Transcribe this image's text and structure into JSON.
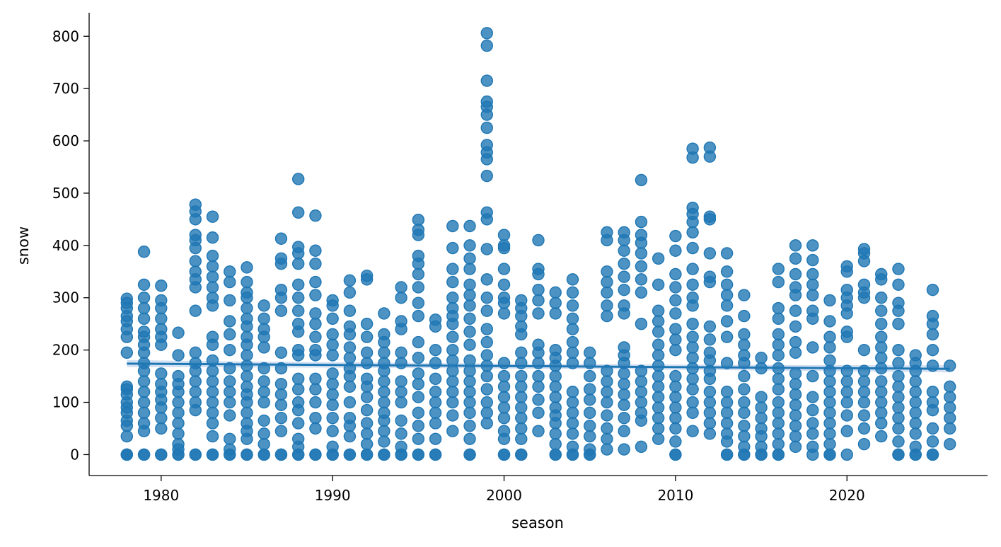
{
  "chart_data": {
    "type": "scatter",
    "title": "",
    "xlabel": "season",
    "ylabel": "snow",
    "xlim": [
      1975.8,
      2028.2
    ],
    "ylim": [
      -40,
      845
    ],
    "xticks": [
      1980,
      1990,
      2000,
      2010,
      2020
    ],
    "yticks": [
      0,
      100,
      200,
      300,
      400,
      500,
      600,
      700,
      800
    ],
    "grid": false,
    "legend": "none",
    "colors": {
      "points": "#1f77b4",
      "line": "#1f77b4",
      "band": "#aec7e8"
    },
    "regression": {
      "x": [
        1978,
        2026
      ],
      "y": [
        174,
        164
      ]
    },
    "points": [
      {
        "x": 1978,
        "y": [
          0,
          0,
          0,
          35,
          55,
          65,
          80,
          90,
          100,
          115,
          125,
          130,
          195,
          225,
          240,
          255,
          265,
          280,
          290,
          298
        ]
      },
      {
        "x": 1979,
        "y": [
          0,
          0,
          45,
          60,
          80,
          100,
          120,
          140,
          160,
          175,
          195,
          210,
          225,
          235,
          260,
          280,
          300,
          325,
          388
        ]
      },
      {
        "x": 1980,
        "y": [
          0,
          0,
          50,
          70,
          90,
          105,
          120,
          135,
          155,
          210,
          225,
          240,
          260,
          280,
          295,
          323
        ]
      },
      {
        "x": 1981,
        "y": [
          0,
          0,
          10,
          20,
          40,
          60,
          80,
          100,
          120,
          135,
          150,
          190,
          233
        ]
      },
      {
        "x": 1982,
        "y": [
          0,
          0,
          85,
          100,
          120,
          140,
          160,
          175,
          195,
          275,
          320,
          335,
          350,
          370,
          395,
          410,
          420,
          450,
          465,
          478
        ]
      },
      {
        "x": 1983,
        "y": [
          0,
          0,
          35,
          60,
          80,
          100,
          120,
          140,
          160,
          180,
          210,
          225,
          285,
          300,
          320,
          340,
          360,
          380,
          415,
          455
        ]
      },
      {
        "x": 1984,
        "y": [
          0,
          0,
          10,
          30,
          75,
          100,
          120,
          140,
          165,
          200,
          230,
          255,
          295,
          330,
          350
        ]
      },
      {
        "x": 1985,
        "y": [
          0,
          0,
          30,
          45,
          60,
          80,
          100,
          115,
          130,
          150,
          170,
          190,
          210,
          225,
          245,
          260,
          280,
          300,
          310,
          330,
          358
        ]
      },
      {
        "x": 1986,
        "y": [
          0,
          0,
          20,
          40,
          65,
          100,
          120,
          140,
          165,
          205,
          225,
          240,
          260,
          285
        ]
      },
      {
        "x": 1987,
        "y": [
          0,
          0,
          45,
          70,
          95,
          115,
          135,
          165,
          195,
          275,
          300,
          315,
          365,
          375,
          413
        ]
      },
      {
        "x": 1988,
        "y": [
          0,
          0,
          15,
          30,
          60,
          85,
          100,
          125,
          145,
          190,
          200,
          235,
          250,
          275,
          300,
          325,
          365,
          385,
          397,
          463,
          527
        ]
      },
      {
        "x": 1989,
        "y": [
          0,
          0,
          50,
          70,
          100,
          125,
          145,
          190,
          200,
          225,
          250,
          270,
          305,
          330,
          365,
          390,
          457
        ]
      },
      {
        "x": 1990,
        "y": [
          0,
          0,
          15,
          45,
          70,
          95,
          115,
          135,
          155,
          190,
          210,
          230,
          260,
          285,
          295
        ]
      },
      {
        "x": 1991,
        "y": [
          0,
          0,
          35,
          55,
          70,
          100,
          130,
          150,
          165,
          185,
          205,
          230,
          245,
          275,
          310,
          333
        ]
      },
      {
        "x": 1992,
        "y": [
          0,
          0,
          20,
          40,
          60,
          85,
          110,
          130,
          145,
          175,
          195,
          225,
          250,
          335,
          342
        ]
      },
      {
        "x": 1993,
        "y": [
          0,
          0,
          25,
          45,
          65,
          80,
          100,
          120,
          140,
          160,
          175,
          195,
          215,
          230,
          270
        ]
      },
      {
        "x": 1994,
        "y": [
          0,
          0,
          15,
          40,
          65,
          100,
          120,
          140,
          175,
          195,
          240,
          255,
          300,
          320
        ]
      },
      {
        "x": 1995,
        "y": [
          0,
          0,
          30,
          55,
          80,
          110,
          135,
          155,
          185,
          215,
          265,
          290,
          320,
          345,
          365,
          380,
          420,
          430,
          449
        ]
      },
      {
        "x": 1996,
        "y": [
          0,
          0,
          30,
          60,
          80,
          100,
          120,
          145,
          175,
          200,
          245,
          258
        ]
      },
      {
        "x": 1997,
        "y": [
          45,
          75,
          100,
          120,
          140,
          160,
          180,
          200,
          225,
          250,
          265,
          280,
          300,
          330,
          355,
          395,
          437
        ]
      },
      {
        "x": 1998,
        "y": [
          0,
          0,
          30,
          55,
          80,
          100,
          120,
          140,
          160,
          180,
          210,
          235,
          260,
          285,
          305,
          325,
          355,
          375,
          400,
          437
        ]
      },
      {
        "x": 1999,
        "y": [
          60,
          80,
          100,
          125,
          150,
          170,
          190,
          215,
          240,
          275,
          300,
          335,
          393,
          450,
          463,
          533,
          565,
          578,
          592,
          625,
          650,
          665,
          675,
          715,
          782,
          806
        ]
      },
      {
        "x": 2000,
        "y": [
          0,
          0,
          30,
          45,
          70,
          90,
          110,
          130,
          150,
          175,
          270,
          290,
          300,
          325,
          355,
          395,
          400,
          420
        ]
      },
      {
        "x": 2001,
        "y": [
          0,
          0,
          30,
          50,
          70,
          90,
          110,
          130,
          150,
          175,
          195,
          230,
          245,
          265,
          280,
          295
        ]
      },
      {
        "x": 2002,
        "y": [
          45,
          80,
          105,
          130,
          150,
          175,
          195,
          210,
          270,
          295,
          315,
          345,
          355,
          410
        ]
      },
      {
        "x": 2003,
        "y": [
          0,
          0,
          20,
          40,
          60,
          75,
          90,
          110,
          130,
          150,
          170,
          185,
          200,
          270,
          290,
          310
        ]
      },
      {
        "x": 2004,
        "y": [
          0,
          0,
          15,
          40,
          60,
          80,
          100,
          120,
          175,
          195,
          215,
          240,
          260,
          285,
          310,
          335
        ]
      },
      {
        "x": 2005,
        "y": [
          0,
          0,
          10,
          35,
          55,
          80,
          105,
          125,
          150,
          175,
          195
        ]
      },
      {
        "x": 2006,
        "y": [
          10,
          30,
          50,
          75,
          100,
          120,
          140,
          160,
          265,
          285,
          310,
          330,
          350,
          410,
          425
        ]
      },
      {
        "x": 2007,
        "y": [
          10,
          45,
          70,
          95,
          115,
          135,
          155,
          175,
          190,
          205,
          270,
          285,
          315,
          340,
          365,
          390,
          410,
          425
        ]
      },
      {
        "x": 2008,
        "y": [
          15,
          65,
          80,
          100,
          120,
          140,
          160,
          250,
          310,
          335,
          360,
          385,
          405,
          420,
          445,
          525
        ]
      },
      {
        "x": 2009,
        "y": [
          30,
          50,
          70,
          90,
          110,
          130,
          150,
          170,
          190,
          210,
          235,
          255,
          275,
          325,
          375
        ]
      },
      {
        "x": 2010,
        "y": [
          0,
          0,
          25,
          50,
          70,
          90,
          110,
          130,
          150,
          200,
          220,
          240,
          270,
          295,
          320,
          345,
          390,
          418
        ]
      },
      {
        "x": 2011,
        "y": [
          45,
          80,
          100,
          125,
          145,
          165,
          185,
          205,
          225,
          250,
          285,
          300,
          325,
          355,
          395,
          425,
          445,
          460,
          472,
          568,
          585
        ]
      },
      {
        "x": 2012,
        "y": [
          40,
          60,
          80,
          100,
          120,
          145,
          160,
          180,
          195,
          220,
          245,
          330,
          340,
          385,
          450,
          455,
          570,
          587
        ]
      },
      {
        "x": 2013,
        "y": [
          0,
          0,
          25,
          40,
          60,
          80,
          100,
          120,
          175,
          225,
          255,
          285,
          305,
          325,
          350,
          385
        ]
      },
      {
        "x": 2014,
        "y": [
          0,
          0,
          15,
          35,
          55,
          80,
          100,
          125,
          150,
          175,
          190,
          210,
          230,
          265,
          305
        ]
      },
      {
        "x": 2015,
        "y": [
          0,
          0,
          15,
          35,
          50,
          70,
          90,
          110,
          165,
          185
        ]
      },
      {
        "x": 2016,
        "y": [
          0,
          0,
          20,
          40,
          60,
          80,
          100,
          125,
          145,
          165,
          190,
          210,
          230,
          260,
          280,
          330,
          355
        ]
      },
      {
        "x": 2017,
        "y": [
          15,
          35,
          55,
          75,
          95,
          115,
          135,
          155,
          195,
          215,
          245,
          275,
          305,
          320,
          345,
          375,
          400
        ]
      },
      {
        "x": 2018,
        "y": [
          0,
          15,
          40,
          60,
          85,
          110,
          150,
          205,
          260,
          275,
          305,
          325,
          345,
          372,
          400
        ]
      },
      {
        "x": 2019,
        "y": [
          0,
          0,
          20,
          40,
          60,
          80,
          100,
          120,
          140,
          160,
          180,
          205,
          225,
          255,
          295
        ]
      },
      {
        "x": 2020,
        "y": [
          0,
          45,
          75,
          100,
          120,
          140,
          160,
          225,
          235,
          270,
          285,
          300,
          315,
          350,
          360
        ]
      },
      {
        "x": 2021,
        "y": [
          20,
          50,
          75,
          100,
          120,
          140,
          160,
          200,
          300,
          310,
          325,
          370,
          385,
          393
        ]
      },
      {
        "x": 2022,
        "y": [
          35,
          60,
          80,
          100,
          120,
          140,
          165,
          185,
          205,
          225,
          250,
          275,
          300,
          335,
          345
        ]
      },
      {
        "x": 2023,
        "y": [
          0,
          0,
          25,
          50,
          70,
          90,
          110,
          130,
          150,
          175,
          200,
          250,
          275,
          290,
          325,
          355
        ]
      },
      {
        "x": 2024,
        "y": [
          0,
          0,
          15,
          40,
          60,
          80,
          100,
          120,
          140,
          160,
          175,
          190
        ]
      },
      {
        "x": 2025,
        "y": [
          0,
          0,
          25,
          50,
          85,
          100,
          120,
          170,
          200,
          230,
          250,
          265,
          315
        ]
      },
      {
        "x": 2026,
        "y": [
          20,
          50,
          70,
          90,
          110,
          130,
          170
        ]
      }
    ]
  }
}
